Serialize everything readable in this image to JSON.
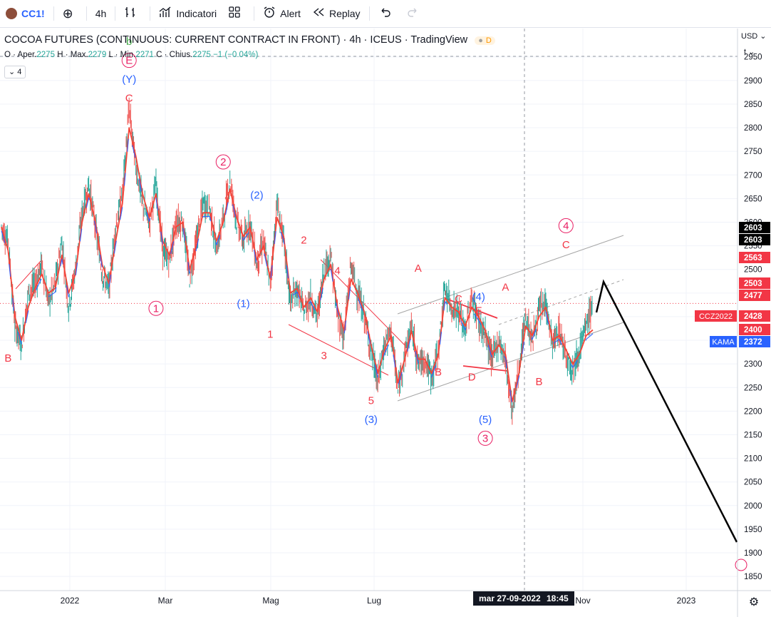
{
  "toolbar": {
    "symbol": "CC1!",
    "interval": "4h",
    "indicators_label": "Indicatori",
    "alert_label": "Alert",
    "replay_label": "Replay"
  },
  "legend": {
    "title": "COCOA FUTURES (CONTINUOUS: CURRENT CONTRACT IN FRONT) · 4h · ICEUS · TradingView",
    "badge": "D",
    "ohlc": {
      "open_label": "O · Aper.",
      "open": "2275",
      "high_label": "H · Max.",
      "high": "2279",
      "low_label": "L · Min.",
      "low": "2271",
      "close_label": "C · Chius.",
      "close": "2275",
      "change": "−1 (−0.04%)"
    },
    "indicator_count": "4"
  },
  "axis": {
    "currency": "USD",
    "unit_hint": "t",
    "price_ticks": [
      "2950",
      "2900",
      "2850",
      "2800",
      "2750",
      "2700",
      "2650",
      "2600",
      "2550",
      "2500",
      "2450",
      "2400",
      "2350",
      "2300",
      "2250",
      "2200",
      "2150",
      "2100",
      "2050",
      "2000",
      "1950",
      "1900",
      "1850"
    ],
    "time_ticks": [
      "2022",
      "Mar",
      "Mag",
      "Lug",
      "Nov",
      "2023"
    ],
    "crosshair_date": "mar 27-09-2022",
    "crosshair_time": "18:45"
  },
  "price_tags": [
    {
      "value": "2603",
      "color": "#000000"
    },
    {
      "value": "2603",
      "color": "#000000"
    },
    {
      "value": "2563",
      "color": "#f23645"
    },
    {
      "value": "2503",
      "color": "#f23645"
    },
    {
      "value": "2477",
      "color": "#f23645"
    },
    {
      "value": "2428",
      "color": "#f23645",
      "label": "CCZ2022"
    },
    {
      "value": "2400",
      "color": "#f23645"
    },
    {
      "value": "2372",
      "color": "#2962ff",
      "label": "KAMA"
    }
  ],
  "chart_data": {
    "type": "line",
    "series": [
      {
        "values": [
          2590,
          2560,
          2380,
          2340,
          2450,
          2470,
          2510,
          2430,
          2470,
          2560,
          2420,
          2500,
          2620,
          2680,
          2590,
          2490,
          2460,
          2590,
          2660,
          2840,
          2720,
          2640,
          2600,
          2680,
          2540,
          2520,
          2600,
          2600,
          2480,
          2560,
          2640,
          2630,
          2540,
          2610,
          2690,
          2600,
          2560,
          2600,
          2510,
          2560,
          2470,
          2640,
          2560,
          2430,
          2460,
          2410,
          2440,
          2400,
          2500,
          2530,
          2400,
          2360,
          2510,
          2450,
          2400,
          2330,
          2260,
          2340,
          2370,
          2240,
          2320,
          2380,
          2300,
          2310,
          2270,
          2330,
          2460,
          2420,
          2410,
          2370,
          2440,
          2390,
          2360,
          2310,
          2350,
          2310,
          2200,
          2290,
          2400,
          2350,
          2410,
          2430,
          2340,
          2370,
          2320,
          2290,
          2330,
          2380,
          2428
        ]
      },
      {
        "values": [
          2590,
          2540,
          2400,
          2350,
          2420,
          2460,
          2490,
          2450,
          2460,
          2530,
          2450,
          2490,
          2600,
          2660,
          2600,
          2510,
          2470,
          2560,
          2640,
          2800,
          2740,
          2660,
          2610,
          2660,
          2560,
          2530,
          2590,
          2600,
          2500,
          2550,
          2620,
          2620,
          2560,
          2600,
          2670,
          2610,
          2570,
          2590,
          2520,
          2550,
          2480,
          2610,
          2570,
          2450,
          2460,
          2420,
          2440,
          2410,
          2480,
          2510,
          2420,
          2370,
          2480,
          2450,
          2410,
          2340,
          2280,
          2330,
          2360,
          2260,
          2310,
          2370,
          2310,
          2310,
          2280,
          2320,
          2440,
          2420,
          2410,
          2380,
          2420,
          2400,
          2370,
          2320,
          2340,
          2320,
          2220,
          2280,
          2380,
          2360,
          2400,
          2420,
          2350,
          2360,
          2330,
          2300,
          2320,
          2360,
          2372
        ]
      }
    ],
    "ylim": [
      1820,
      3010
    ],
    "annotations": [
      {
        "text": "b",
        "color": "#4caf50",
        "kind": "plain",
        "i": 19,
        "y": 2975
      },
      {
        "text": "E",
        "color": "#e91e63",
        "kind": "circle",
        "i": 19,
        "y": 2935
      },
      {
        "text": "(Y)",
        "color": "#2962ff",
        "kind": "plain",
        "i": 19,
        "y": 2895
      },
      {
        "text": "C",
        "color": "#f23645",
        "kind": "plain",
        "i": 19,
        "y": 2855
      },
      {
        "text": "2",
        "color": "#e91e63",
        "kind": "circle",
        "i": 33,
        "y": 2720
      },
      {
        "text": "(2)",
        "color": "#2962ff",
        "kind": "plain",
        "i": 38,
        "y": 2650
      },
      {
        "text": "1",
        "color": "#e91e63",
        "kind": "circle",
        "i": 23,
        "y": 2410
      },
      {
        "text": "(1)",
        "color": "#2962ff",
        "kind": "plain",
        "i": 36,
        "y": 2420
      },
      {
        "text": "B",
        "color": "#f23645",
        "kind": "plain",
        "i": 1,
        "y": 2305
      },
      {
        "text": "2",
        "color": "#f23645",
        "kind": "plain",
        "i": 45,
        "y": 2555
      },
      {
        "text": "4",
        "color": "#f23645",
        "kind": "plain",
        "i": 50,
        "y": 2490
      },
      {
        "text": "1",
        "color": "#f23645",
        "kind": "plain",
        "i": 40,
        "y": 2355
      },
      {
        "text": "3",
        "color": "#f23645",
        "kind": "plain",
        "i": 48,
        "y": 2310
      },
      {
        "text": "5",
        "color": "#f23645",
        "kind": "plain",
        "i": 55,
        "y": 2215
      },
      {
        "text": "(3)",
        "color": "#2962ff",
        "kind": "plain",
        "i": 55,
        "y": 2175
      },
      {
        "text": "A",
        "color": "#f23645",
        "kind": "plain",
        "i": 62,
        "y": 2495
      },
      {
        "text": "C",
        "color": "#f23645",
        "kind": "plain",
        "i": 68,
        "y": 2430
      },
      {
        "text": "(4)",
        "color": "#2962ff",
        "kind": "plain",
        "i": 71,
        "y": 2435
      },
      {
        "text": "E",
        "color": "#f23645",
        "kind": "plain",
        "i": 71,
        "y": 2405
      },
      {
        "text": "B",
        "color": "#f23645",
        "kind": "plain",
        "i": 65,
        "y": 2275
      },
      {
        "text": "D",
        "color": "#f23645",
        "kind": "plain",
        "i": 70,
        "y": 2265
      },
      {
        "text": "(5)",
        "color": "#2962ff",
        "kind": "plain",
        "i": 72,
        "y": 2175
      },
      {
        "text": "3",
        "color": "#e91e63",
        "kind": "circle",
        "i": 72,
        "y": 2135
      },
      {
        "text": "A",
        "color": "#f23645",
        "kind": "plain",
        "i": 75,
        "y": 2455
      },
      {
        "text": "B",
        "color": "#f23645",
        "kind": "plain",
        "i": 80,
        "y": 2255
      },
      {
        "text": "4",
        "color": "#e91e63",
        "kind": "circle",
        "i": 84,
        "y": 2585
      },
      {
        "text": "C",
        "color": "#f23645",
        "kind": "plain",
        "i": 84,
        "y": 2545
      }
    ]
  }
}
